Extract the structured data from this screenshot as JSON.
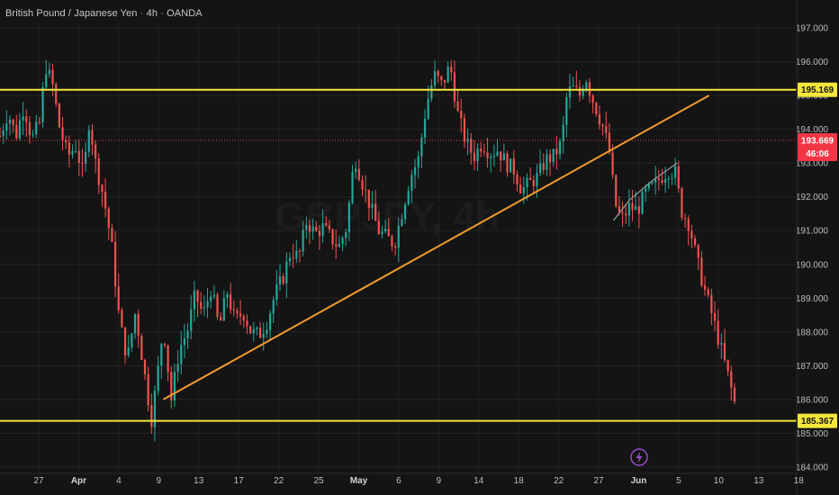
{
  "header": {
    "symbol": "British Pound / Japanese Yen",
    "interval": "4h",
    "broker": "OANDA"
  },
  "watermark": "GBPJPY, 4h",
  "colors": {
    "background": "#141414",
    "up": "#26a69a",
    "down": "#ef5350",
    "level_line": "#f5e63c",
    "trend_line": "#f29b2e",
    "price_badge": "#f23645",
    "flash_icon": "#9c4fd6"
  },
  "flash_icon": "lightning-icon",
  "chart_data": {
    "type": "candlestick",
    "ylim": [
      183.6,
      197.5
    ],
    "y_ticks": [
      "184.000",
      "185.000",
      "186.000",
      "187.000",
      "188.000",
      "189.000",
      "190.000",
      "191.000",
      "192.000",
      "193.000",
      "194.000",
      "195.000",
      "196.000",
      "197.000"
    ],
    "x_ticks": [
      {
        "label": "27",
        "month": false
      },
      {
        "label": "Apr",
        "month": true
      },
      {
        "label": "4",
        "month": false
      },
      {
        "label": "9",
        "month": false
      },
      {
        "label": "13",
        "month": false
      },
      {
        "label": "17",
        "month": false
      },
      {
        "label": "22",
        "month": false
      },
      {
        "label": "25",
        "month": false
      },
      {
        "label": "May",
        "month": true
      },
      {
        "label": "6",
        "month": false
      },
      {
        "label": "9",
        "month": false
      },
      {
        "label": "14",
        "month": false
      },
      {
        "label": "18",
        "month": false
      },
      {
        "label": "22",
        "month": false
      },
      {
        "label": "27",
        "month": false
      },
      {
        "label": "Jun",
        "month": true
      },
      {
        "label": "5",
        "month": false
      },
      {
        "label": "10",
        "month": false
      },
      {
        "label": "13",
        "month": false
      },
      {
        "label": "18",
        "month": false
      }
    ],
    "horizontal_levels": [
      {
        "value": 195.169,
        "label": "195.169"
      },
      {
        "value": 185.367,
        "label": "185.367"
      }
    ],
    "current_price": {
      "value": 193.669,
      "label": "193.669",
      "countdown": "46:06"
    },
    "trend_line": {
      "from": [
        0.205,
        186.0
      ],
      "to": [
        0.89,
        195.0
      ]
    },
    "fit_curve": [
      [
        0.77,
        191.3
      ],
      [
        0.79,
        191.9
      ],
      [
        0.82,
        192.5
      ],
      [
        0.85,
        193.0
      ]
    ],
    "price_path": [
      [
        0.0,
        193.8
      ],
      [
        0.01,
        194.5
      ],
      [
        0.02,
        193.8
      ],
      [
        0.03,
        194.7
      ],
      [
        0.04,
        193.7
      ],
      [
        0.05,
        194.2
      ],
      [
        0.057,
        195.9
      ],
      [
        0.066,
        195.3
      ],
      [
        0.075,
        194.0
      ],
      [
        0.085,
        193.2
      ],
      [
        0.095,
        193.5
      ],
      [
        0.105,
        192.6
      ],
      [
        0.112,
        194.3
      ],
      [
        0.12,
        193.0
      ],
      [
        0.13,
        192.0
      ],
      [
        0.14,
        190.6
      ],
      [
        0.15,
        188.3
      ],
      [
        0.16,
        187.2
      ],
      [
        0.17,
        188.6
      ],
      [
        0.18,
        187.0
      ],
      [
        0.19,
        185.4
      ],
      [
        0.197,
        186.6
      ],
      [
        0.205,
        188.2
      ],
      [
        0.215,
        186.0
      ],
      [
        0.225,
        187.5
      ],
      [
        0.235,
        188.0
      ],
      [
        0.245,
        189.1
      ],
      [
        0.255,
        188.5
      ],
      [
        0.265,
        189.3
      ],
      [
        0.275,
        188.1
      ],
      [
        0.285,
        189.2
      ],
      [
        0.295,
        188.3
      ],
      [
        0.305,
        188.6
      ],
      [
        0.315,
        188.0
      ],
      [
        0.325,
        187.9
      ],
      [
        0.335,
        188.3
      ],
      [
        0.345,
        189.1
      ],
      [
        0.355,
        189.6
      ],
      [
        0.365,
        190.4
      ],
      [
        0.375,
        190.2
      ],
      [
        0.385,
        191.3
      ],
      [
        0.395,
        190.9
      ],
      [
        0.405,
        191.1
      ],
      [
        0.415,
        190.8
      ],
      [
        0.425,
        190.5
      ],
      [
        0.435,
        191.1
      ],
      [
        0.445,
        193.2
      ],
      [
        0.455,
        192.4
      ],
      [
        0.465,
        191.7
      ],
      [
        0.475,
        191.0
      ],
      [
        0.485,
        190.8
      ],
      [
        0.495,
        190.6
      ],
      [
        0.505,
        191.6
      ],
      [
        0.515,
        192.6
      ],
      [
        0.525,
        193.1
      ],
      [
        0.535,
        194.7
      ],
      [
        0.545,
        195.6
      ],
      [
        0.555,
        195.3
      ],
      [
        0.565,
        195.9
      ],
      [
        0.575,
        194.4
      ],
      [
        0.585,
        193.6
      ],
      [
        0.595,
        193.2
      ],
      [
        0.605,
        193.6
      ],
      [
        0.615,
        193.3
      ],
      [
        0.625,
        193.4
      ],
      [
        0.635,
        193.0
      ],
      [
        0.645,
        192.8
      ],
      [
        0.655,
        192.2
      ],
      [
        0.665,
        192.4
      ],
      [
        0.675,
        192.6
      ],
      [
        0.685,
        193.1
      ],
      [
        0.695,
        193.2
      ],
      [
        0.705,
        193.6
      ],
      [
        0.712,
        195.1
      ],
      [
        0.72,
        195.2
      ],
      [
        0.728,
        195.0
      ],
      [
        0.735,
        195.6
      ],
      [
        0.742,
        195.0
      ],
      [
        0.75,
        194.5
      ],
      [
        0.758,
        194.0
      ],
      [
        0.765,
        193.3
      ],
      [
        0.772,
        191.8
      ],
      [
        0.78,
        191.3
      ],
      [
        0.79,
        191.7
      ],
      [
        0.8,
        191.6
      ],
      [
        0.81,
        192.1
      ],
      [
        0.82,
        192.3
      ],
      [
        0.83,
        192.6
      ],
      [
        0.84,
        192.8
      ],
      [
        0.848,
        192.7
      ],
      [
        0.855,
        191.6
      ],
      [
        0.865,
        191.2
      ],
      [
        0.875,
        190.1
      ],
      [
        0.885,
        189.2
      ],
      [
        0.895,
        188.4
      ],
      [
        0.905,
        187.5
      ],
      [
        0.915,
        186.6
      ],
      [
        0.922,
        185.9
      ]
    ]
  }
}
